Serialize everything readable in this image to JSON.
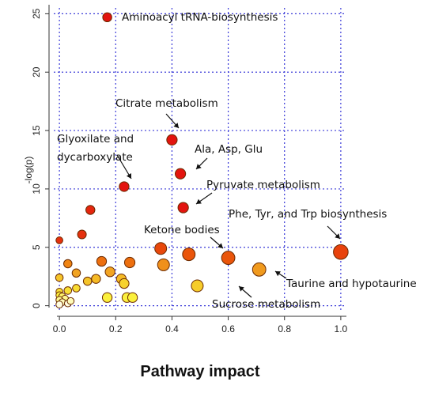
{
  "chart_data": {
    "type": "scatter",
    "xlabel": "Pathway impact",
    "ylabel": "-log(p)",
    "xlim": [
      -0.02,
      1.02
    ],
    "ylim": [
      -0.5,
      25.5
    ],
    "x_ticks": [
      0.0,
      0.2,
      0.4,
      0.6,
      0.8,
      1.0
    ],
    "x_tick_labels": [
      "0.0",
      "0.2",
      "0.4",
      "0.6",
      "0.8",
      "1.0"
    ],
    "y_ticks": [
      0,
      5,
      10,
      15,
      20,
      25
    ],
    "y_tick_labels": [
      "0",
      "5",
      "10",
      "15",
      "20",
      "25"
    ],
    "grid": true,
    "points": [
      {
        "x": 0.17,
        "y": 24.7,
        "size": 0.3,
        "color": "#e3140f"
      },
      {
        "x": 0.4,
        "y": 14.2,
        "size": 0.4,
        "color": "#e3140f"
      },
      {
        "x": 0.43,
        "y": 11.3,
        "size": 0.4,
        "color": "#e3140f"
      },
      {
        "x": 0.23,
        "y": 10.2,
        "size": 0.35,
        "color": "#e3140f"
      },
      {
        "x": 0.44,
        "y": 8.4,
        "size": 0.4,
        "color": "#e3140f"
      },
      {
        "x": 0.11,
        "y": 8.2,
        "size": 0.3,
        "color": "#e5250e"
      },
      {
        "x": 0.08,
        "y": 6.1,
        "size": 0.28,
        "color": "#e5300d"
      },
      {
        "x": 0.0,
        "y": 5.6,
        "size": 0.15,
        "color": "#e5300d"
      },
      {
        "x": 1.0,
        "y": 4.6,
        "size": 0.7,
        "color": "#e8420c"
      },
      {
        "x": 0.36,
        "y": 4.9,
        "size": 0.5,
        "color": "#e8480c"
      },
      {
        "x": 0.46,
        "y": 4.4,
        "size": 0.55,
        "color": "#ea550b"
      },
      {
        "x": 0.6,
        "y": 4.1,
        "size": 0.6,
        "color": "#ea550b"
      },
      {
        "x": 0.15,
        "y": 3.8,
        "size": 0.35,
        "color": "#ed6f0e"
      },
      {
        "x": 0.25,
        "y": 3.7,
        "size": 0.4,
        "color": "#ed6f0e"
      },
      {
        "x": 0.03,
        "y": 3.6,
        "size": 0.25,
        "color": "#ef8412"
      },
      {
        "x": 0.37,
        "y": 3.5,
        "size": 0.5,
        "color": "#f0901a"
      },
      {
        "x": 0.71,
        "y": 3.1,
        "size": 0.6,
        "color": "#f09a1e"
      },
      {
        "x": 0.18,
        "y": 2.9,
        "size": 0.35,
        "color": "#f2a422"
      },
      {
        "x": 0.06,
        "y": 2.8,
        "size": 0.25,
        "color": "#f2a422"
      },
      {
        "x": 0.22,
        "y": 2.3,
        "size": 0.35,
        "color": "#f5ba25"
      },
      {
        "x": 0.13,
        "y": 2.3,
        "size": 0.3,
        "color": "#f5ba25"
      },
      {
        "x": 0.1,
        "y": 2.1,
        "size": 0.25,
        "color": "#f5c42a"
      },
      {
        "x": 0.0,
        "y": 2.4,
        "size": 0.2,
        "color": "#f5c42a"
      },
      {
        "x": 0.49,
        "y": 1.7,
        "size": 0.5,
        "color": "#f6cc2a"
      },
      {
        "x": 0.23,
        "y": 1.9,
        "size": 0.35,
        "color": "#f7d22e"
      },
      {
        "x": 0.06,
        "y": 1.5,
        "size": 0.2,
        "color": "#f8dc32"
      },
      {
        "x": 0.03,
        "y": 1.3,
        "size": 0.2,
        "color": "#f9e035"
      },
      {
        "x": 0.0,
        "y": 1.2,
        "size": 0.15,
        "color": "#f9e035"
      },
      {
        "x": 0.17,
        "y": 0.7,
        "size": 0.35,
        "color": "#fbf03c"
      },
      {
        "x": 0.24,
        "y": 0.7,
        "size": 0.35,
        "color": "#fbf03c"
      },
      {
        "x": 0.26,
        "y": 0.7,
        "size": 0.35,
        "color": "#fbf03c"
      },
      {
        "x": 0.0,
        "y": 0.9,
        "size": 0.15,
        "color": "#fbf03c"
      },
      {
        "x": 0.01,
        "y": 0.8,
        "size": 0.15,
        "color": "#fcf46a"
      },
      {
        "x": 0.02,
        "y": 0.6,
        "size": 0.15,
        "color": "#fdf890"
      },
      {
        "x": 0.0,
        "y": 0.5,
        "size": 0.15,
        "color": "#fdf890"
      },
      {
        "x": 0.01,
        "y": 0.3,
        "size": 0.15,
        "color": "#fefbb8"
      },
      {
        "x": 0.03,
        "y": 0.2,
        "size": 0.15,
        "color": "#fffde0"
      },
      {
        "x": 0.04,
        "y": 0.4,
        "size": 0.15,
        "color": "#fefbb8"
      },
      {
        "x": 0.0,
        "y": 0.1,
        "size": 0.15,
        "color": "#fffde0"
      }
    ],
    "annotations": [
      {
        "text": "Aminoacyl tRNA-biosynthesis",
        "point_index": 0
      },
      {
        "text": "Citrate metabolism",
        "point_index": 1
      },
      {
        "text": "Ala, Asp, Glu",
        "point_index": 2
      },
      {
        "text": "Glyoxilate and",
        "point_index": 3
      },
      {
        "text": "dycarboxylate",
        "point_index": 3
      },
      {
        "text": "Pyruvate metabolism",
        "point_index": 4
      },
      {
        "text": "Phe, Tyr, and Trp biosynthesis",
        "point_index": 8
      },
      {
        "text": "Ketone bodies",
        "point_index": 11
      },
      {
        "text": "Taurine and hypotaurine",
        "point_index": 16
      },
      {
        "text": "Sucrose metabolism",
        "point_index": 23
      }
    ]
  }
}
